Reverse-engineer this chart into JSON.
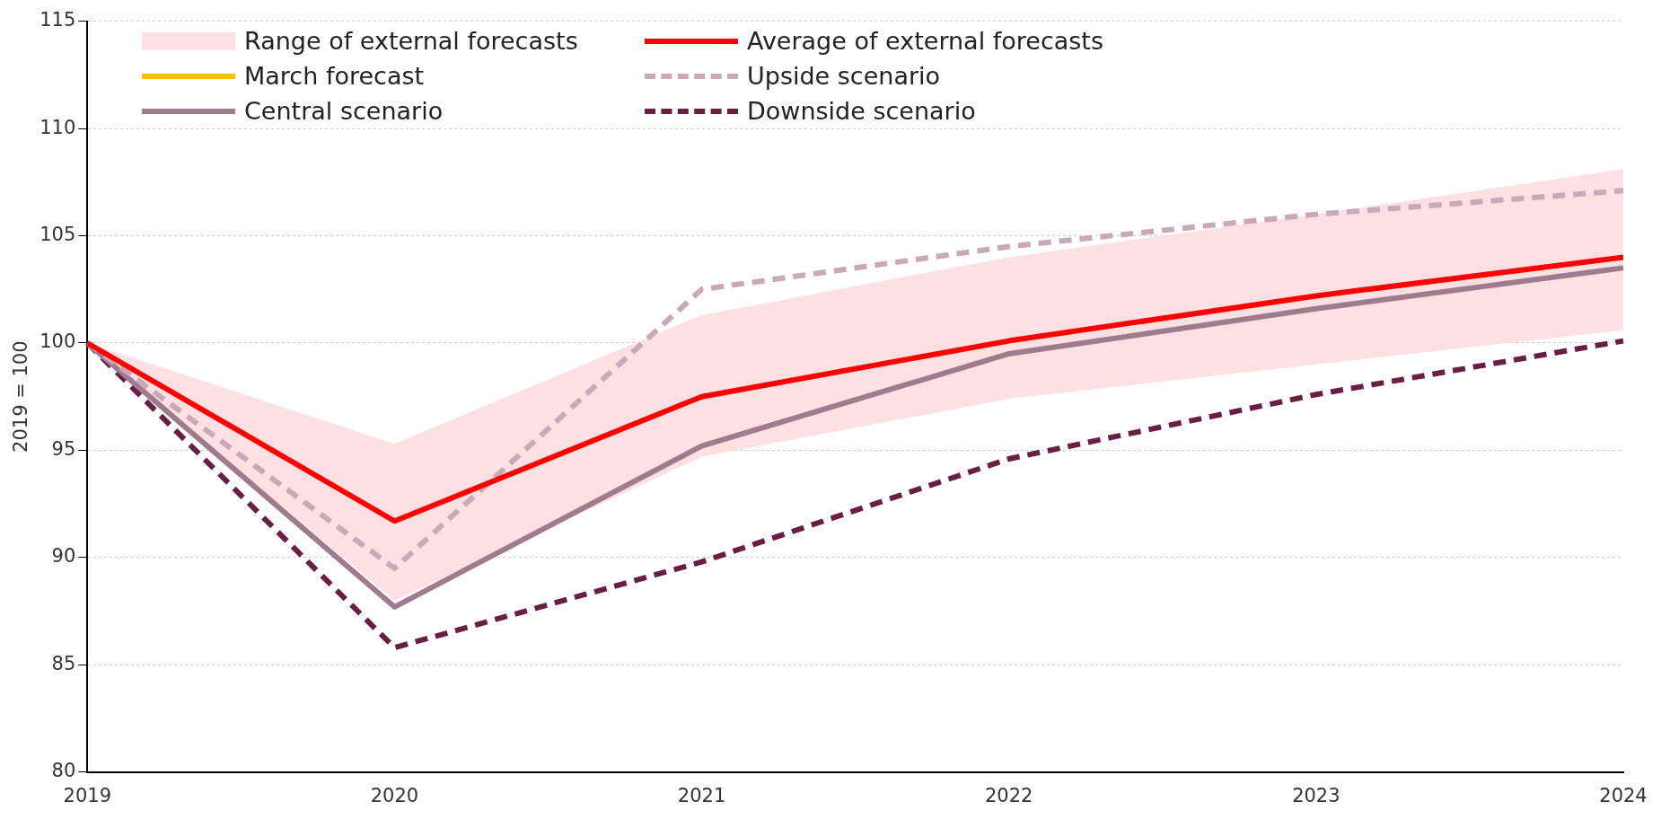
{
  "chart_data": {
    "type": "line",
    "ylabel": "2019 = 100",
    "categories": [
      "2019",
      "2020",
      "2021",
      "2022",
      "2023",
      "2024"
    ],
    "ylim": [
      80,
      115
    ],
    "yticks": [
      80,
      85,
      90,
      95,
      100,
      105,
      110,
      115
    ],
    "grid": "y",
    "legend": "top left",
    "series": [
      {
        "name": "Range of external forecasts",
        "type": "area",
        "color": "#fde0e1",
        "values": [
          null,
          null,
          null,
          null,
          null,
          null
        ],
        "lower": [
          100,
          88.0,
          94.7,
          97.4,
          99.0,
          100.6
        ],
        "upper": [
          100,
          95.3,
          101.3,
          104.0,
          106.0,
          108.1
        ]
      },
      {
        "name": "Average of external forecasts",
        "color": "#ff0000",
        "line_style": "solid",
        "values": [
          100,
          91.7,
          97.5,
          100.1,
          102.2,
          104.0
        ]
      },
      {
        "name": "March forecast",
        "color": "#ffc000",
        "line_style": "solid",
        "values": [
          null,
          null,
          null,
          null,
          null,
          null
        ]
      },
      {
        "name": "Upside scenario",
        "color": "#c9a9b9",
        "line_style": "dashed",
        "values": [
          100,
          89.5,
          102.5,
          104.5,
          106.0,
          107.1
        ]
      },
      {
        "name": "Central scenario",
        "color": "#a07a8e",
        "line_style": "solid",
        "values": [
          100,
          87.7,
          95.2,
          99.5,
          101.6,
          103.5
        ]
      },
      {
        "name": "Downside scenario",
        "color": "#6a1d45",
        "line_style": "dashed",
        "values": [
          100,
          85.8,
          89.8,
          94.6,
          97.6,
          100.1
        ]
      }
    ]
  }
}
